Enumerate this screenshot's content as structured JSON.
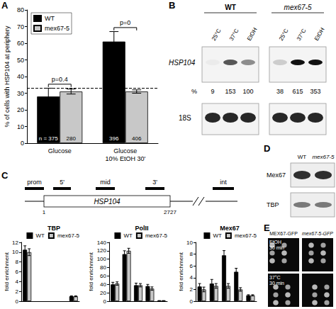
{
  "chart_data": [
    {
      "type": "bar",
      "panel_label": "A",
      "categories": [
        "Glucose",
        "Glucose\n10% EtOH 30'"
      ],
      "y_label": "% of cells with HSP104 at periphery",
      "ylim": [
        0,
        80
      ],
      "yticks": [
        0,
        10,
        20,
        30,
        40,
        50,
        60,
        70,
        80
      ],
      "grid": false,
      "legend": "top-left",
      "hline": 33,
      "n_label": "n =",
      "series": [
        {
          "name": "WT",
          "color": "#000000",
          "values": [
            28,
            61
          ],
          "errors": [
            5,
            6
          ],
          "n": [
            375,
            396
          ]
        },
        {
          "name": "mex67-5",
          "color": "#c8c8c8",
          "values": [
            31,
            31
          ],
          "errors": [
            1.5,
            1
          ],
          "n": [
            280,
            406
          ]
        }
      ],
      "annotations": [
        {
          "text": "p=0.4",
          "category": "Glucose"
        },
        {
          "text": "p=0",
          "category": "Glucose\n10% EtOH 30'"
        }
      ]
    },
    {
      "type": "bar",
      "title": "TBP",
      "categories": [
        null,
        null,
        null,
        null,
        null
      ],
      "y_label": "fold enrichment",
      "ylim": [
        0,
        12
      ],
      "yticks": [
        0,
        2,
        4,
        6,
        8,
        10,
        12
      ],
      "grid": false,
      "legend": "top-right",
      "tick_labels": "y",
      "series": [
        {
          "name": "WT",
          "color": "#000000",
          "values": [
            10.5,
            null,
            null,
            null,
            1
          ],
          "errors": [
            0.8,
            null,
            null,
            null,
            0.1
          ]
        },
        {
          "name": "mex67-5",
          "color": "#c8c8c8",
          "values": [
            10,
            null,
            null,
            null,
            1
          ],
          "errors": [
            0.7,
            null,
            null,
            null,
            0.1
          ]
        }
      ]
    },
    {
      "type": "bar",
      "title": "PolII",
      "categories": [
        null,
        null,
        null,
        null,
        null
      ],
      "y_label": "fold enrichment",
      "ylim": [
        0,
        140
      ],
      "yticks": [
        0,
        20,
        40,
        60,
        80,
        100,
        120,
        140
      ],
      "grid": false,
      "legend": "top-right",
      "tick_labels": "y",
      "series": [
        {
          "name": "WT",
          "color": "#000000",
          "values": [
            40,
            112,
            38,
            36,
            1
          ],
          "errors": [
            5,
            8,
            5,
            4,
            0.5
          ]
        },
        {
          "name": "mex67-5",
          "color": "#c8c8c8",
          "values": [
            42,
            120,
            38,
            30,
            1
          ],
          "errors": [
            4,
            6,
            4,
            4,
            0.5
          ]
        }
      ]
    },
    {
      "type": "bar",
      "title": "Mex67",
      "categories": [
        null,
        null,
        null,
        null,
        null
      ],
      "y_label": "fold enrichment",
      "ylim": [
        0,
        10
      ],
      "yticks": [
        0,
        2,
        4,
        6,
        8,
        10
      ],
      "grid": false,
      "legend": "top-right",
      "tick_labels": "y",
      "series": [
        {
          "name": "WT",
          "color": "#000000",
          "values": [
            2.5,
            3,
            7.8,
            5,
            1
          ],
          "errors": [
            0.5,
            0.7,
            0.8,
            0.6,
            0.1
          ]
        },
        {
          "name": "mex67-5",
          "color": "#c8c8c8",
          "values": [
            2,
            2.6,
            2.6,
            2,
            1
          ],
          "errors": [
            0.4,
            0.4,
            0.4,
            0.3,
            0.1
          ]
        }
      ]
    }
  ],
  "panels": {
    "B": {
      "label": "B",
      "strains": [
        "WT",
        "mex67-5"
      ],
      "conditions": [
        "25°C",
        "37°C",
        "EtOH"
      ],
      "probe": "HSP104",
      "loading": "18S",
      "percent_label": "%",
      "percent": [
        [
          9,
          153,
          100
        ],
        [
          38,
          615,
          353
        ]
      ]
    },
    "C": {
      "label": "C",
      "gene": "HSP104",
      "regions": [
        "prom",
        "5'",
        "mid",
        "3'",
        "int"
      ],
      "start": 1,
      "end": 2727
    },
    "D": {
      "label": "D",
      "strains": [
        "WT",
        "mex67-5"
      ],
      "blots": [
        "Mex67",
        "TBP"
      ]
    },
    "E": {
      "label": "E",
      "strains": [
        "MEX67-GFP",
        "mex67-5-GFP"
      ],
      "conditions": [
        "EtOH\n30 min",
        "37°C\n30 min"
      ]
    }
  }
}
